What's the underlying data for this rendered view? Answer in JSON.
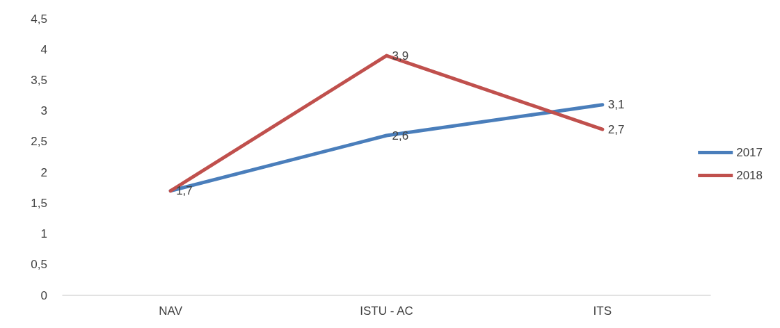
{
  "chart_data": {
    "type": "line",
    "categories": [
      "NAV",
      "ISTU - AC",
      "ITS"
    ],
    "series": [
      {
        "name": "2017",
        "color": "#4a7ebb",
        "values": [
          1.7,
          2.6,
          3.1
        ],
        "value_labels": [
          "1,7",
          "2,6",
          "3,1"
        ]
      },
      {
        "name": "2018",
        "color": "#c0504d",
        "values": [
          1.7,
          3.9,
          2.7
        ],
        "value_labels": [
          null,
          "3,9",
          "2,7"
        ]
      }
    ],
    "ylim": [
      0,
      4.5
    ],
    "yticks": [
      0,
      {
        "value": 0.5,
        "label": "0,5"
      },
      1,
      {
        "value": 1.5,
        "label": "1,5"
      },
      2,
      {
        "value": 2.5,
        "label": "2,5"
      },
      3,
      {
        "value": 3.5,
        "label": "3,5"
      },
      4,
      {
        "value": 4.5,
        "label": "4,5"
      }
    ],
    "grid": false,
    "legend": "right",
    "marker": "none",
    "line_style": "solid"
  }
}
